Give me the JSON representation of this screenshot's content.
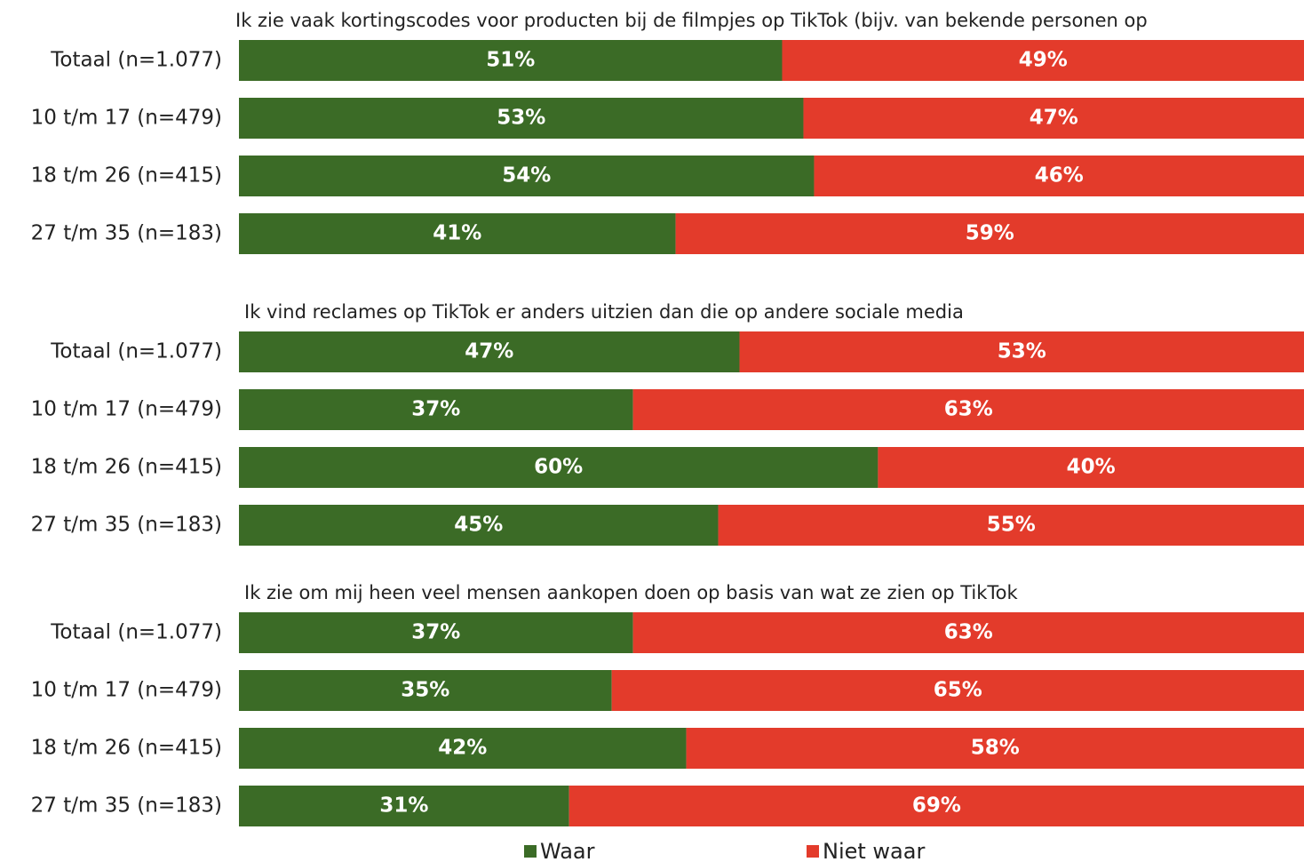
{
  "chart_data": [
    {
      "type": "bar",
      "orientation": "horizontal",
      "stacked": true,
      "title": "Ik zie vaak kortingscodes voor producten bij de filmpjes op TikTok (bijv. van bekende personen op",
      "categories": [
        "Totaal (n=1.077)",
        "10 t/m 17  (n=479)",
        "18 t/m 26  (n=415)",
        "27 t/m 35  (n=183)"
      ],
      "xlim": [
        0,
        100
      ],
      "series": [
        {
          "name": "Waar",
          "color": "#3b6b26",
          "values": [
            51,
            53,
            54,
            41
          ],
          "value_labels": [
            "51%",
            "53%",
            "54%",
            "41%"
          ]
        },
        {
          "name": "Niet waar",
          "color": "#e33b2b",
          "values": [
            49,
            47,
            46,
            59
          ],
          "value_labels": [
            "49%",
            "47%",
            "46%",
            "59%"
          ]
        }
      ]
    },
    {
      "type": "bar",
      "orientation": "horizontal",
      "stacked": true,
      "title": "Ik vind reclames op TikTok er anders uitzien dan die op andere sociale media",
      "categories": [
        "Totaal (n=1.077)",
        "10 t/m 17  (n=479)",
        "18 t/m 26  (n=415)",
        "27 t/m 35  (n=183)"
      ],
      "xlim": [
        0,
        100
      ],
      "series": [
        {
          "name": "Waar",
          "color": "#3b6b26",
          "values": [
            47,
            37,
            60,
            45
          ],
          "value_labels": [
            "47%",
            "37%",
            "60%",
            "45%"
          ]
        },
        {
          "name": "Niet waar",
          "color": "#e33b2b",
          "values": [
            53,
            63,
            40,
            55
          ],
          "value_labels": [
            "53%",
            "63%",
            "40%",
            "55%"
          ]
        }
      ]
    },
    {
      "type": "bar",
      "orientation": "horizontal",
      "stacked": true,
      "title": "Ik zie om mij heen veel mensen aankopen doen op basis van wat ze zien op TikTok",
      "categories": [
        "Totaal (n=1.077)",
        "10 t/m 17  (n=479)",
        "18 t/m 26  (n=415)",
        "27 t/m 35  (n=183)"
      ],
      "xlim": [
        0,
        100
      ],
      "series": [
        {
          "name": "Waar",
          "color": "#3b6b26",
          "values": [
            37,
            35,
            42,
            31
          ],
          "value_labels": [
            "37%",
            "35%",
            "42%",
            "31%"
          ]
        },
        {
          "name": "Niet waar",
          "color": "#e33b2b",
          "values": [
            63,
            65,
            58,
            69
          ],
          "value_labels": [
            "63%",
            "65%",
            "58%",
            "69%"
          ]
        }
      ]
    }
  ]
}
